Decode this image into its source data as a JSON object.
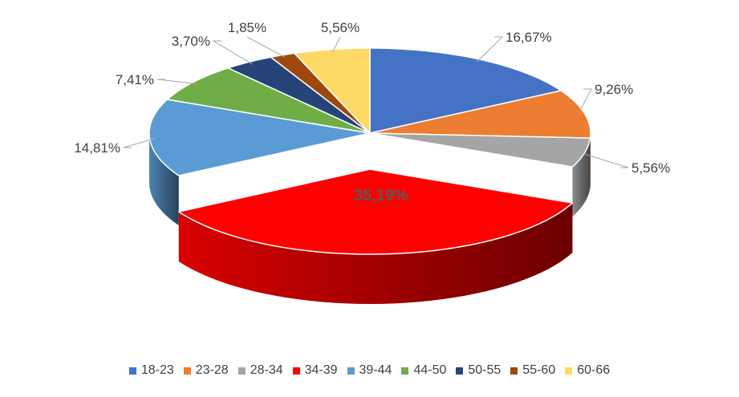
{
  "chart_data": {
    "type": "pie",
    "style": "3d",
    "categories": [
      "18-23",
      "23-28",
      "28-34",
      "34-39",
      "39-44",
      "44-50",
      "50-55",
      "55-60",
      "60-66"
    ],
    "values": [
      16.67,
      9.26,
      5.56,
      35.19,
      14.81,
      7.41,
      3.7,
      1.85,
      5.56
    ],
    "labels": [
      "16,67%",
      "9,26%",
      "5,56%",
      "35,19%",
      "14,81%",
      "7,41%",
      "3,70%",
      "1,85%",
      "5,56%"
    ],
    "colors": [
      "#4472C4",
      "#ED7D31",
      "#A5A5A5",
      "#FF0000",
      "#5B9BD5",
      "#70AD47",
      "#264478",
      "#9E480E",
      "#FFD966"
    ],
    "legend_position": "bottom",
    "exploded": "34-39"
  }
}
